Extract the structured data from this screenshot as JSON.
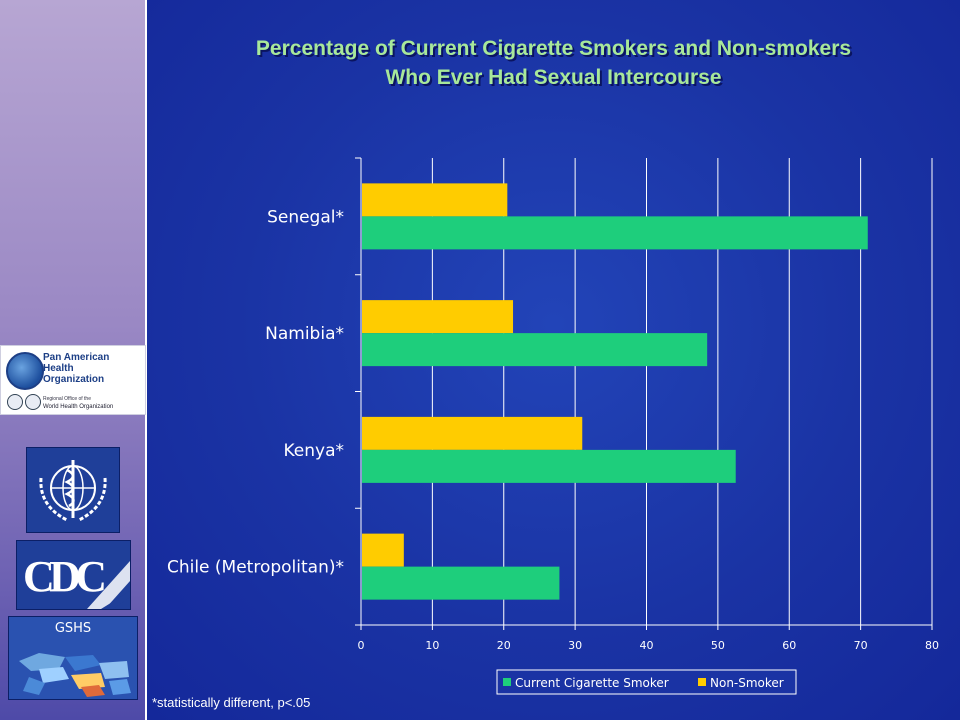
{
  "slide": {
    "title_line_1": "Percentage of Current Cigarette Smokers and Non-smokers",
    "title_line_2": "Who Ever Had Sexual Intercourse",
    "footnote": "*statistically different, p<.05"
  },
  "logos": {
    "paho_name_1": "Pan American",
    "paho_name_2": "Health",
    "paho_name_3": "Organization",
    "paho_sub_1": "Regional Office of the",
    "paho_sub_2": "World Health Organization",
    "cdc": "CDC",
    "gshs": "GSHS"
  },
  "colors": {
    "smoker": "#1ece7c",
    "non_smoker": "#ffcc00",
    "title": "#a8e89a"
  },
  "chart_data": {
    "type": "bar",
    "orientation": "horizontal",
    "title": "Percentage of Current Cigarette Smokers and Non-smokers Who Ever Had Sexual Intercourse",
    "categories": [
      "Senegal*",
      "Namibia*",
      "Kenya*",
      "Chile (Metropolitan)*"
    ],
    "series": [
      {
        "name": "Non-Smoker",
        "color": "#ffcc00",
        "values": [
          20.5,
          21.3,
          31.0,
          6.0
        ]
      },
      {
        "name": "Current Cigarette Smoker",
        "color": "#1ece7c",
        "values": [
          71.0,
          48.5,
          52.5,
          27.8
        ]
      }
    ],
    "xlim": [
      0,
      80
    ],
    "x_ticks": [
      "0",
      "10",
      "20",
      "30",
      "40",
      "50",
      "60",
      "70",
      "80"
    ],
    "grid": true,
    "legend": [
      "Current Cigarette Smoker",
      "Non-Smoker"
    ],
    "legend_position": "bottom"
  }
}
